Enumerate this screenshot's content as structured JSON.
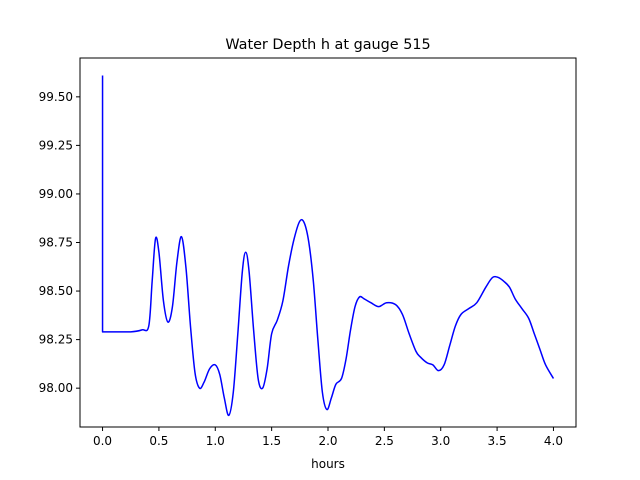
{
  "chart_data": {
    "type": "line",
    "title": "Water Depth h at gauge 515",
    "xlabel": "hours",
    "ylabel": "",
    "xlim": [
      -0.2,
      4.2
    ],
    "ylim": [
      97.8,
      99.7
    ],
    "grid": false,
    "legend": "none",
    "xticks": [
      0.0,
      0.5,
      1.0,
      1.5,
      2.0,
      2.5,
      3.0,
      3.5,
      4.0
    ],
    "xtick_labels": [
      "0.0",
      "0.5",
      "1.0",
      "1.5",
      "2.0",
      "2.5",
      "3.0",
      "3.5",
      "4.0"
    ],
    "yticks": [
      98.0,
      98.25,
      98.5,
      98.75,
      99.0,
      99.25,
      99.5
    ],
    "ytick_labels": [
      "98.00",
      "98.25",
      "98.50",
      "98.75",
      "99.00",
      "99.25",
      "99.50"
    ],
    "series": [
      {
        "name": "",
        "color": "#0000ff",
        "x": [
          0.0,
          0.0,
          0.25,
          0.35,
          0.41,
          0.44,
          0.47,
          0.5,
          0.54,
          0.58,
          0.62,
          0.66,
          0.7,
          0.74,
          0.78,
          0.82,
          0.86,
          0.9,
          0.95,
          1.0,
          1.04,
          1.08,
          1.12,
          1.16,
          1.2,
          1.24,
          1.27,
          1.3,
          1.34,
          1.38,
          1.42,
          1.46,
          1.5,
          1.55,
          1.6,
          1.65,
          1.7,
          1.75,
          1.79,
          1.83,
          1.87,
          1.91,
          1.95,
          1.99,
          2.03,
          2.07,
          2.12,
          2.16,
          2.2,
          2.24,
          2.28,
          2.32,
          2.38,
          2.45,
          2.52,
          2.6,
          2.66,
          2.72,
          2.78,
          2.82,
          2.88,
          2.93,
          2.98,
          3.03,
          3.08,
          3.13,
          3.18,
          3.25,
          3.32,
          3.4,
          3.46,
          3.51,
          3.56,
          3.61,
          3.66,
          3.72,
          3.78,
          3.83,
          3.88,
          3.93,
          4.0
        ],
        "values": [
          99.61,
          98.29,
          98.29,
          98.3,
          98.32,
          98.55,
          98.77,
          98.7,
          98.45,
          98.34,
          98.42,
          98.65,
          98.78,
          98.62,
          98.32,
          98.08,
          98.0,
          98.03,
          98.1,
          98.12,
          98.07,
          97.95,
          97.86,
          97.98,
          98.28,
          98.6,
          98.7,
          98.6,
          98.3,
          98.05,
          98.0,
          98.1,
          98.28,
          98.35,
          98.45,
          98.63,
          98.77,
          98.86,
          98.85,
          98.75,
          98.55,
          98.25,
          97.98,
          97.89,
          97.95,
          98.02,
          98.05,
          98.15,
          98.3,
          98.42,
          98.47,
          98.46,
          98.44,
          98.42,
          98.44,
          98.43,
          98.38,
          98.28,
          98.19,
          98.16,
          98.13,
          98.12,
          98.09,
          98.12,
          98.22,
          98.32,
          98.38,
          98.41,
          98.44,
          98.52,
          98.57,
          98.57,
          98.55,
          98.52,
          98.46,
          98.41,
          98.36,
          98.28,
          98.2,
          98.12,
          98.05
        ]
      }
    ]
  }
}
